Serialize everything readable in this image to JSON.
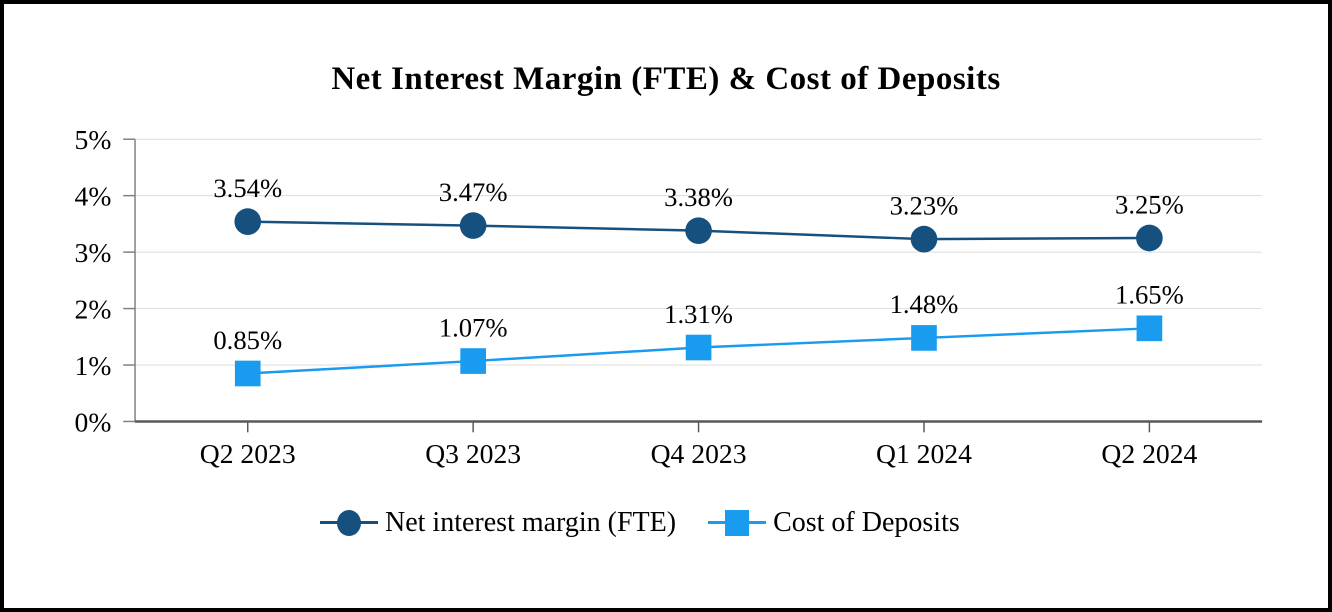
{
  "chart_data": {
    "type": "line",
    "title": "Net Interest Margin (FTE) & Cost of Deposits",
    "categories": [
      "Q2 2023",
      "Q3 2023",
      "Q4 2023",
      "Q1 2024",
      "Q2 2024"
    ],
    "series": [
      {
        "name": "Net interest margin (FTE)",
        "values": [
          3.54,
          3.47,
          3.38,
          3.23,
          3.25
        ],
        "labels": [
          "3.54%",
          "3.47%",
          "3.38%",
          "3.23%",
          "3.25%"
        ],
        "color": "#16507E",
        "marker": "circle"
      },
      {
        "name": "Cost of Deposits",
        "values": [
          0.85,
          1.07,
          1.31,
          1.48,
          1.65
        ],
        "labels": [
          "0.85%",
          "1.07%",
          "1.31%",
          "1.48%",
          "1.65%"
        ],
        "color": "#199BF0",
        "marker": "square"
      }
    ],
    "y_axis": {
      "tick_labels": [
        "0%",
        "1%",
        "2%",
        "3%",
        "4%",
        "5%"
      ],
      "min": 0,
      "max": 5
    },
    "legend_position": "bottom",
    "grid": true,
    "colors": {
      "gridline": "#DCDCDC",
      "y_axis": "#808080",
      "x_axis": "#595959",
      "text": "#000000"
    }
  }
}
